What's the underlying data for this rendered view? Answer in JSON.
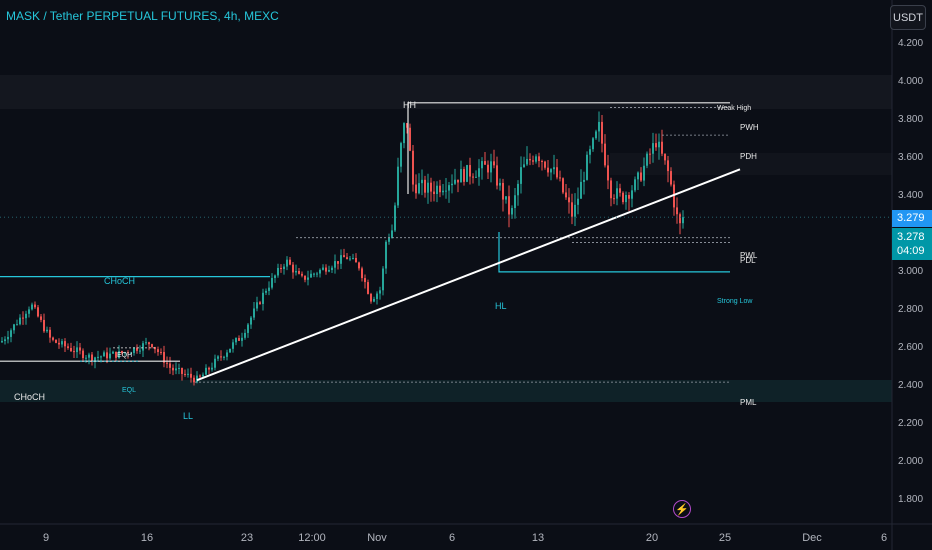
{
  "header": {
    "title": "MASK / Tether PERPETUAL FUTURES, 4h, MEXC"
  },
  "currency_button": "USDT",
  "last_price": "3.279",
  "current_price": "3.278",
  "countdown": "04:09",
  "colors": {
    "up": "#26a69a",
    "down": "#ef5350",
    "bg": "#0b0e16",
    "accent": "#2196f3",
    "teal_tag": "#0097a7",
    "zone": "#0f2228"
  },
  "icons": {
    "replay": "lightning-bolt-icon"
  },
  "chart_data": {
    "type": "candlestick",
    "timeframe": "4h",
    "ylim": [
      1.8,
      4.3
    ],
    "y_ticks": [
      "4.200",
      "4.000",
      "3.800",
      "3.600",
      "3.400",
      "3.200",
      "3.000",
      "2.800",
      "2.600",
      "2.400",
      "2.200",
      "2.000",
      "1.800"
    ],
    "x_ticks": [
      "9",
      "16",
      "23",
      "12:00",
      "Nov",
      "6",
      "13",
      "20",
      "25",
      "Dec",
      "6"
    ],
    "price_path": [
      [
        0,
        2.62
      ],
      [
        30,
        2.82
      ],
      [
        50,
        2.63
      ],
      [
        90,
        2.54
      ],
      [
        120,
        2.56
      ],
      [
        150,
        2.62
      ],
      [
        170,
        2.48
      ],
      [
        197,
        2.42
      ],
      [
        215,
        2.52
      ],
      [
        240,
        2.65
      ],
      [
        265,
        2.9
      ],
      [
        285,
        3.05
      ],
      [
        300,
        2.95
      ],
      [
        320,
        3.0
      ],
      [
        345,
        3.07
      ],
      [
        358,
        3.02
      ],
      [
        370,
        2.85
      ],
      [
        380,
        2.9
      ],
      [
        385,
        3.15
      ],
      [
        392,
        3.22
      ],
      [
        398,
        3.58
      ],
      [
        405,
        3.82
      ],
      [
        412,
        3.45
      ],
      [
        430,
        3.42
      ],
      [
        460,
        3.5
      ],
      [
        490,
        3.55
      ],
      [
        500,
        3.42
      ],
      [
        510,
        3.28
      ],
      [
        520,
        3.52
      ],
      [
        535,
        3.62
      ],
      [
        555,
        3.5
      ],
      [
        572,
        3.28
      ],
      [
        585,
        3.55
      ],
      [
        598,
        3.75
      ],
      [
        610,
        3.42
      ],
      [
        620,
        3.38
      ],
      [
        635,
        3.45
      ],
      [
        655,
        3.68
      ],
      [
        668,
        3.5
      ],
      [
        678,
        3.22
      ],
      [
        684,
        3.28
      ]
    ],
    "structure_labels": [
      "HH",
      "HL",
      "LL",
      "CHoCH",
      "CHoCH",
      "EQH",
      "EQL",
      "Weak High",
      "Strong Low",
      "PWH",
      "PDH",
      "PDL",
      "PWL",
      "PML"
    ],
    "levels": [
      {
        "label": "PWH",
        "value": 3.86
      },
      {
        "label": "PDH",
        "value": 3.7
      },
      {
        "label": "PWL",
        "value": 3.18
      },
      {
        "label": "PDL",
        "value": 3.15
      },
      {
        "label": "PML",
        "value": 2.41
      },
      {
        "label": "Weak High",
        "value": 3.88
      },
      {
        "label": "Strong Low",
        "value": 2.99
      },
      {
        "label": "CHoCH",
        "value": 2.97
      },
      {
        "label": "CHoCH",
        "value": 2.52
      }
    ]
  }
}
